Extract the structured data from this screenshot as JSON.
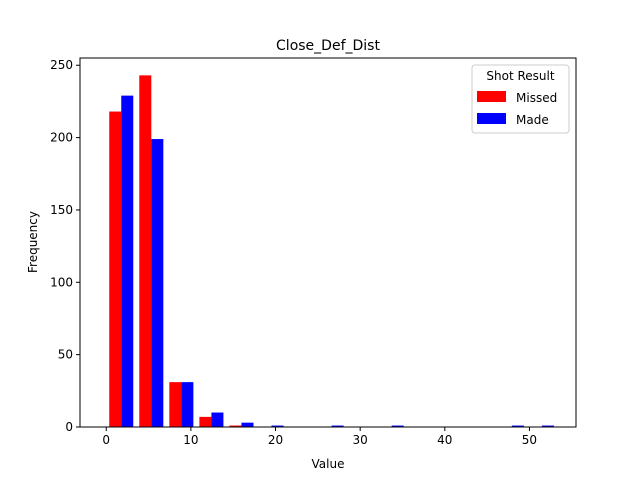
{
  "chart_data": {
    "type": "bar",
    "title": "Close_Def_Dist",
    "xlabel": "Value",
    "ylabel": "Frequency",
    "xlim": [
      -3.1,
      55.5
    ],
    "ylim": [
      0,
      255
    ],
    "xticks": [
      0,
      10,
      20,
      30,
      40,
      50
    ],
    "yticks": [
      0,
      50,
      100,
      150,
      200,
      250
    ],
    "grid": false,
    "legend": {
      "title": "Shot Result",
      "placement": "top-right"
    },
    "bin_width": 3.55,
    "bin_starts": [
      0.0,
      3.55,
      7.1,
      10.65,
      14.2,
      17.75,
      21.3,
      24.85,
      28.4,
      31.95,
      35.5,
      39.05,
      42.6,
      46.15,
      49.7
    ],
    "series": [
      {
        "name": "Missed",
        "color": "#ff0000",
        "values": [
          218,
          243,
          31,
          7,
          1,
          0,
          0,
          0,
          0,
          0,
          0,
          0,
          0,
          0,
          0
        ]
      },
      {
        "name": "Made",
        "color": "#0000ff",
        "values": [
          229,
          199,
          31,
          10,
          3,
          1,
          0,
          1,
          0,
          1,
          0,
          0,
          0,
          1,
          1
        ]
      }
    ]
  }
}
